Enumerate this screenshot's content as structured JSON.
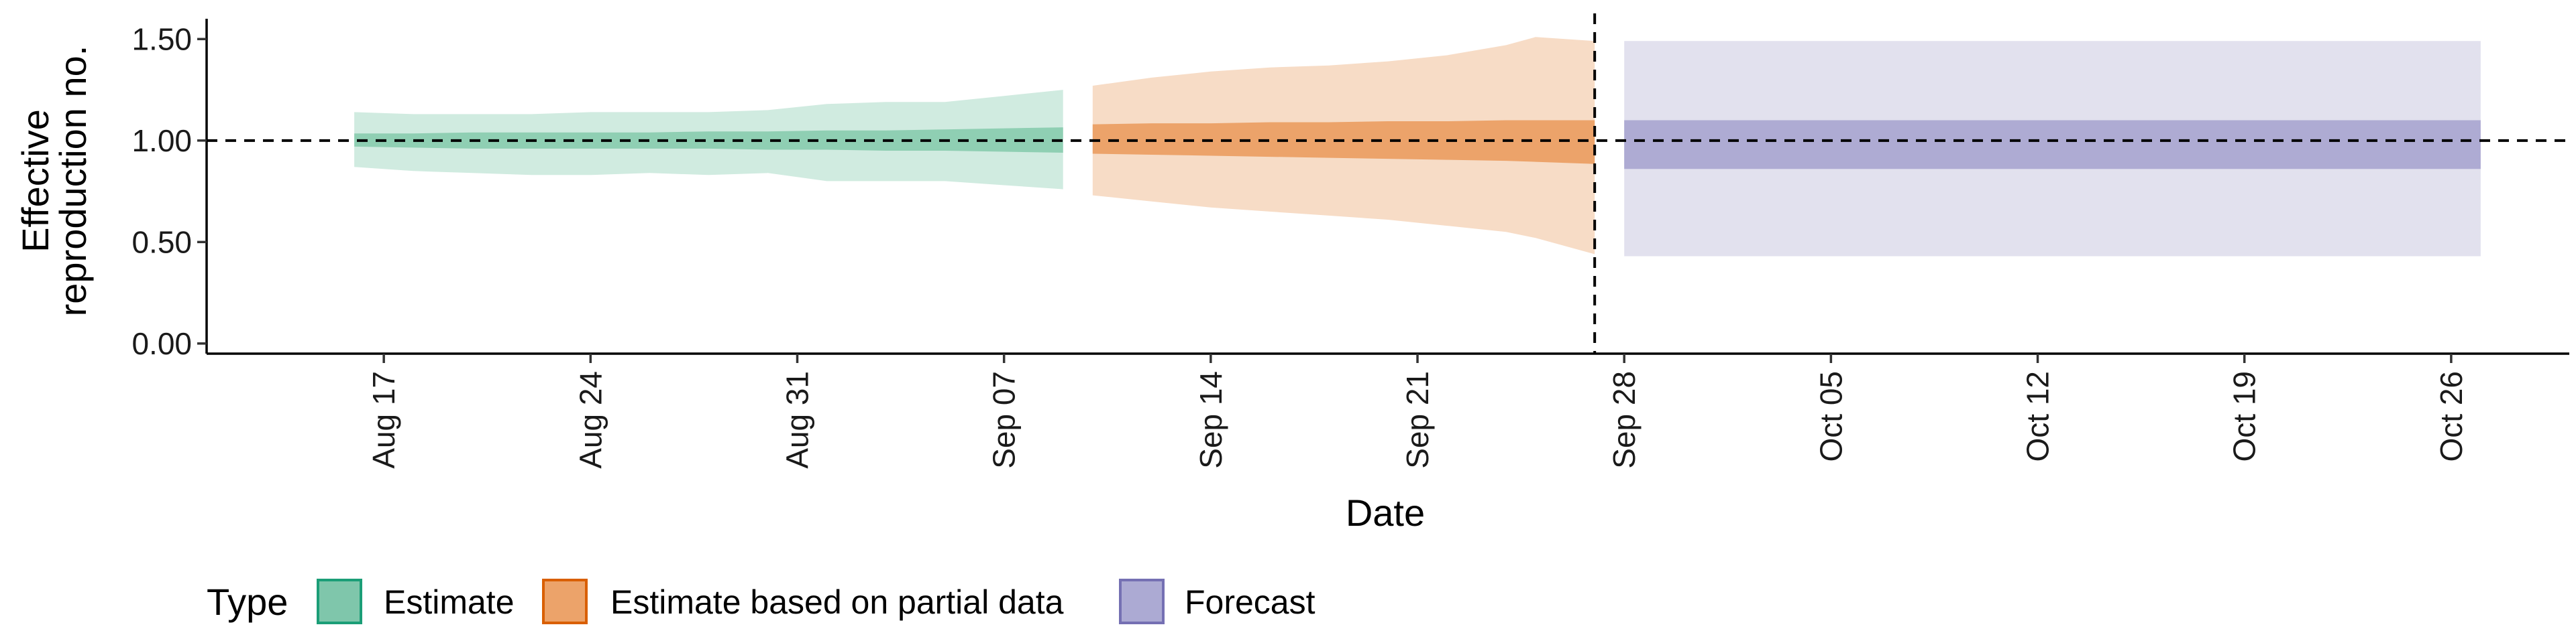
{
  "chart_data": {
    "type": "area",
    "xlabel": "Date",
    "ylabel_lines": [
      "Effective",
      "reproduction no."
    ],
    "x_range": [
      "2020-08-11",
      "2020-10-30"
    ],
    "ylim": [
      -0.05,
      1.6
    ],
    "y_ticks": [
      0.0,
      0.5,
      1.0,
      1.5
    ],
    "y_tick_labels": [
      "0.00",
      "0.50",
      "1.00",
      "1.50"
    ],
    "x_ticks": [
      "2020-08-17",
      "2020-08-24",
      "2020-08-31",
      "2020-09-07",
      "2020-09-14",
      "2020-09-21",
      "2020-09-28",
      "2020-10-05",
      "2020-10-12",
      "2020-10-19",
      "2020-10-26"
    ],
    "x_tick_labels": [
      "Aug 17",
      "Aug 24",
      "Aug 31",
      "Sep 07",
      "Sep 14",
      "Sep 21",
      "Sep 28",
      "Oct 05",
      "Oct 12",
      "Oct 19",
      "Oct 26"
    ],
    "reference_line_y": 1.0,
    "forecast_start_date": "2020-09-27",
    "grid": false,
    "legend": {
      "title": "Type",
      "position": "bottom-left",
      "entries": [
        {
          "label": "Estimate",
          "fill": "#7fc6ab",
          "stroke": "#1b9e77"
        },
        {
          "label": "Estimate based on partial data",
          "fill": "#eca36a",
          "stroke": "#d95f02"
        },
        {
          "label": "Forecast",
          "fill": "#acaad3",
          "stroke": "#7570b3"
        }
      ]
    },
    "series": [
      {
        "name": "Estimate",
        "outer_fill": "#d0ebe0",
        "inner_fill": "#8fcfb3",
        "x": [
          "2020-08-16",
          "2020-08-18",
          "2020-08-20",
          "2020-08-22",
          "2020-08-24",
          "2020-08-26",
          "2020-08-28",
          "2020-08-30",
          "2020-09-01",
          "2020-09-03",
          "2020-09-05",
          "2020-09-07",
          "2020-09-09"
        ],
        "outer_lower": [
          0.87,
          0.85,
          0.84,
          0.83,
          0.83,
          0.84,
          0.83,
          0.84,
          0.8,
          0.8,
          0.8,
          0.78,
          0.76
        ],
        "outer_upper": [
          1.14,
          1.13,
          1.13,
          1.13,
          1.14,
          1.14,
          1.14,
          1.15,
          1.18,
          1.19,
          1.19,
          1.22,
          1.25
        ],
        "inner_lower": [
          0.97,
          0.965,
          0.96,
          0.96,
          0.96,
          0.96,
          0.96,
          0.955,
          0.955,
          0.95,
          0.95,
          0.945,
          0.94
        ],
        "inner_upper": [
          1.035,
          1.035,
          1.04,
          1.04,
          1.04,
          1.04,
          1.045,
          1.045,
          1.05,
          1.05,
          1.055,
          1.06,
          1.065
        ]
      },
      {
        "name": "Estimate based on partial data",
        "outer_fill": "#f7dcc6",
        "inner_fill": "#eca36a",
        "x": [
          "2020-09-10",
          "2020-09-12",
          "2020-09-14",
          "2020-09-16",
          "2020-09-18",
          "2020-09-20",
          "2020-09-22",
          "2020-09-24",
          "2020-09-25",
          "2020-09-27"
        ],
        "outer_lower": [
          0.73,
          0.7,
          0.67,
          0.65,
          0.63,
          0.61,
          0.58,
          0.55,
          0.52,
          0.44
        ],
        "outer_upper": [
          1.27,
          1.31,
          1.34,
          1.36,
          1.37,
          1.39,
          1.42,
          1.47,
          1.51,
          1.49
        ],
        "inner_lower": [
          0.935,
          0.93,
          0.925,
          0.92,
          0.915,
          0.91,
          0.905,
          0.9,
          0.895,
          0.885
        ],
        "inner_upper": [
          1.08,
          1.085,
          1.085,
          1.09,
          1.09,
          1.095,
          1.095,
          1.1,
          1.1,
          1.1
        ]
      },
      {
        "name": "Forecast",
        "outer_fill": "#e2e1ee",
        "inner_fill": "#aeabd3",
        "x": [
          "2020-09-28",
          "2020-10-27"
        ],
        "outer_lower": [
          0.43,
          0.43
        ],
        "outer_upper": [
          1.49,
          1.49
        ],
        "inner_lower": [
          0.86,
          0.86
        ],
        "inner_upper": [
          1.1,
          1.1
        ]
      }
    ]
  }
}
